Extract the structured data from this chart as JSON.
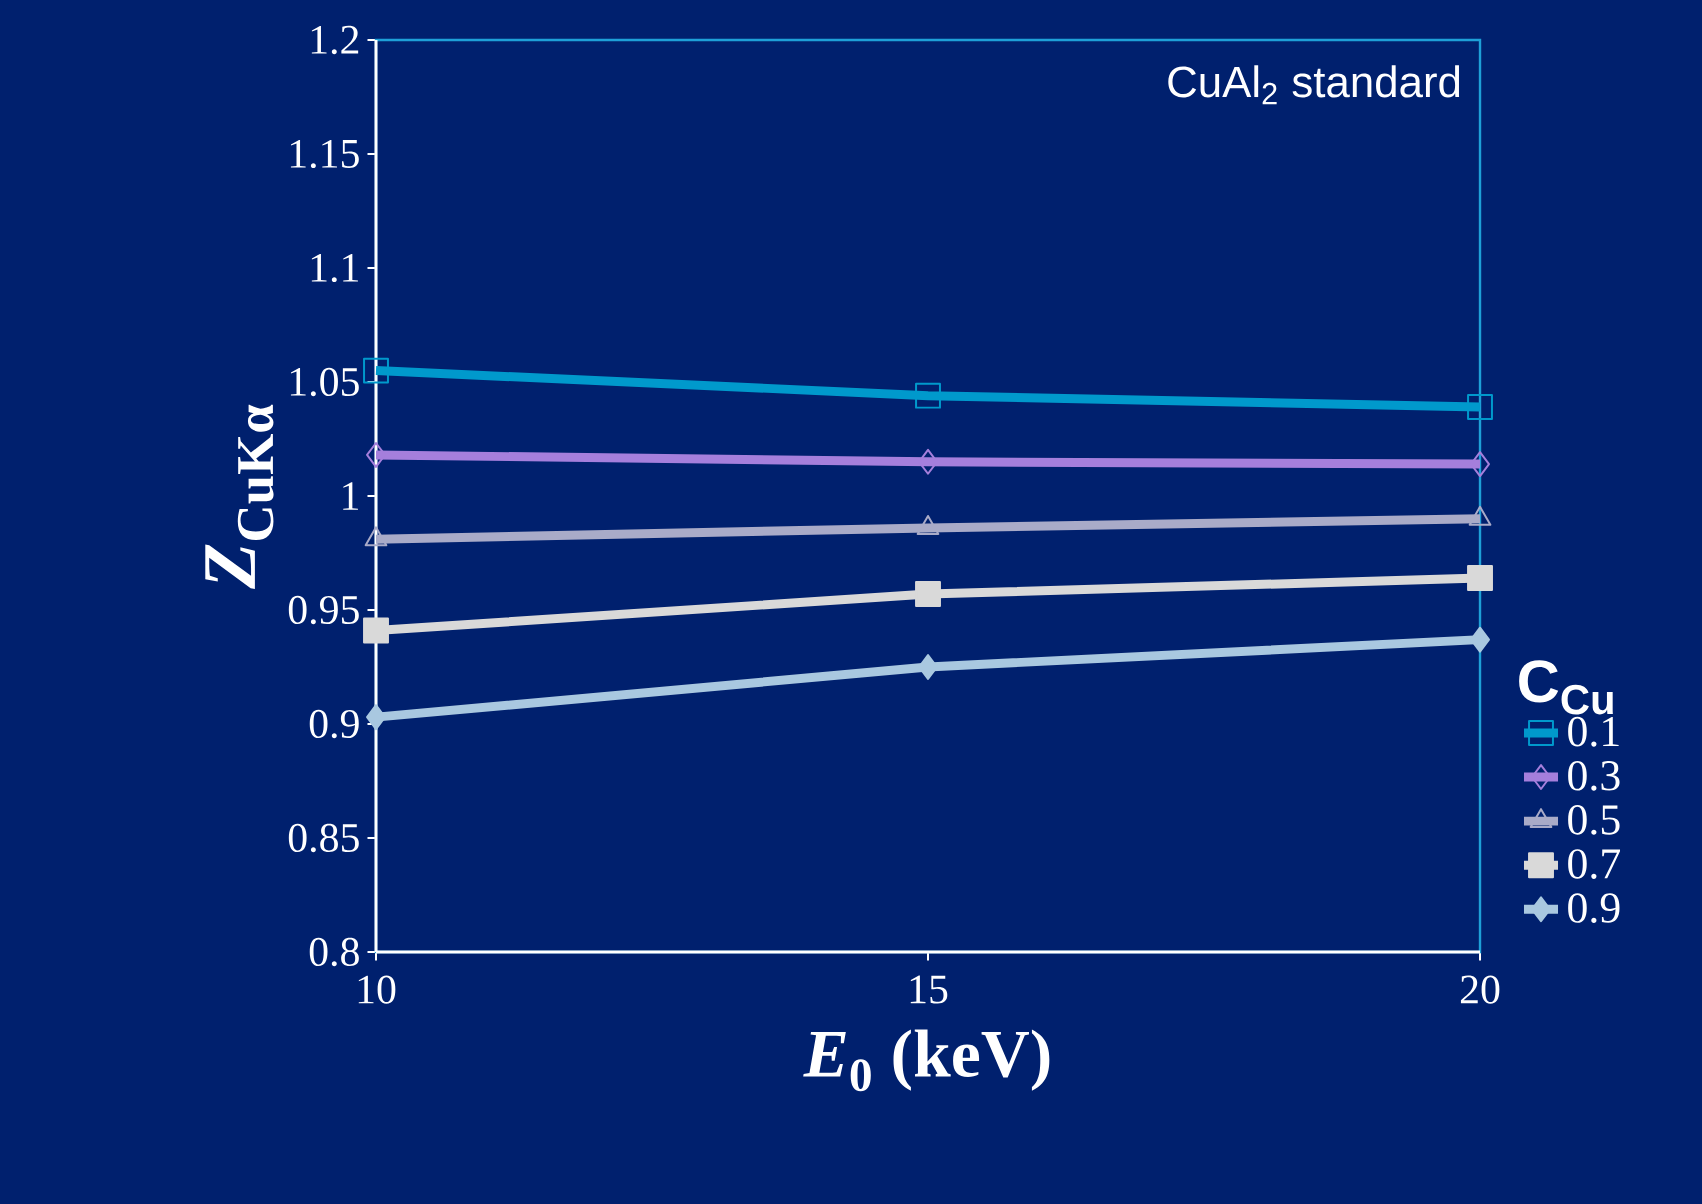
{
  "chart_data": {
    "type": "line",
    "xlabel": "*E*$_{0}$ (keV)",
    "ylabel": "*Z*$_{CuKα}$",
    "legend_title": "C$_{Cu}$",
    "annotations": [
      "CuAl$_{2}$ standard"
    ],
    "x": [
      10,
      15,
      20
    ],
    "xlim": [
      10,
      20
    ],
    "xticks": [
      10,
      15,
      20
    ],
    "ylim": [
      0.8,
      1.2
    ],
    "yticks": [
      0.8,
      0.85,
      0.9,
      0.95,
      1,
      1.05,
      1.1,
      1.15,
      1.2
    ],
    "series": [
      {
        "name": "0.1",
        "color": "#0099cc",
        "marker": "square",
        "values": [
          1.055,
          1.044,
          1.039
        ]
      },
      {
        "name": "0.3",
        "color": "#a57fdc",
        "marker": "diamond",
        "values": [
          1.018,
          1.015,
          1.014
        ]
      },
      {
        "name": "0.5",
        "color": "#a9abc8",
        "marker": "triangle",
        "values": [
          0.981,
          0.986,
          0.99
        ]
      },
      {
        "name": "0.7",
        "color": "#d9d9d9",
        "marker": "square*",
        "values": [
          0.941,
          0.957,
          0.964
        ]
      },
      {
        "name": "0.9",
        "color": "#a9c8e0",
        "marker": "diamond*",
        "values": [
          0.903,
          0.925,
          0.937
        ]
      }
    ],
    "grid": false,
    "legend": "right"
  }
}
